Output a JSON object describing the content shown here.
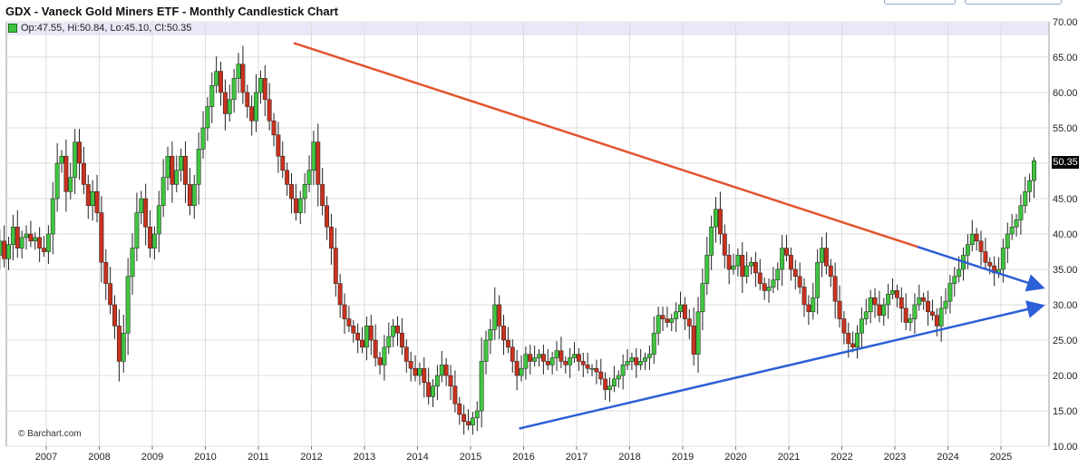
{
  "title": "GDX - Vaneck Gold Miners ETF - Monthly Candlestick Chart",
  "ohlc_readout": "Op:47.55, Hi:50.84, Lo:45.10, Cl:50.35",
  "credit": "© Barchart.com",
  "last_price_label": "50.35",
  "colors": {
    "up": "#3fc53f",
    "down": "#c8321e",
    "wick": "#222222",
    "resistance": "#e4542f",
    "support": "#2d5fd6",
    "header_band": "#e8e8f8",
    "grid": "#dcdcdc"
  },
  "chart_data": {
    "type": "candlestick",
    "title": "GDX - Vaneck Gold Miners ETF - Monthly Candlestick Chart",
    "interval": "monthly",
    "ylim": [
      10,
      70
    ],
    "y_ticks": [
      "70.00",
      "65.00",
      "60.00",
      "55.00",
      "50.00",
      "45.00",
      "40.00",
      "35.00",
      "30.00",
      "25.00",
      "20.00",
      "15.00",
      "10.00"
    ],
    "x_ticks": [
      "2007",
      "2008",
      "2009",
      "2010",
      "2011",
      "2012",
      "2013",
      "2014",
      "2015",
      "2016",
      "2017",
      "2018",
      "2019",
      "2020",
      "2021",
      "2022",
      "2023",
      "2024",
      "2025"
    ],
    "grid": true,
    "last": {
      "open": 47.55,
      "high": 50.84,
      "low": 45.1,
      "close": 50.35
    },
    "closes": [
      37.0,
      39.0,
      36.5,
      38.5,
      41.0,
      38.0,
      39.5,
      40.0,
      39.0,
      39.5,
      38.0,
      37.5,
      40.0,
      45.0,
      50.0,
      51.0,
      46.0,
      48.0,
      53.0,
      50.0,
      47.0,
      44.0,
      46.0,
      43.0,
      36.0,
      33.0,
      30.0,
      27.0,
      22.0,
      26.0,
      34.0,
      38.0,
      43.0,
      45.0,
      41.0,
      38.0,
      40.0,
      44.0,
      48.0,
      51.0,
      47.0,
      49.0,
      51.0,
      47.0,
      44.0,
      47.0,
      52.0,
      55.0,
      58.0,
      61.0,
      63.0,
      60.0,
      57.0,
      59.0,
      62.0,
      64.0,
      60.0,
      58.0,
      56.0,
      60.0,
      62.0,
      59.0,
      56.0,
      54.0,
      51.0,
      49.0,
      47.0,
      45.0,
      43.0,
      45.0,
      47.0,
      49.0,
      53.0,
      47.0,
      44.0,
      41.0,
      38.0,
      33.0,
      30.0,
      28.0,
      27.0,
      26.0,
      25.0,
      24.0,
      27.0,
      25.0,
      22.5,
      21.5,
      24.0,
      25.5,
      27.0,
      26.0,
      24.0,
      22.0,
      21.0,
      20.0,
      21.0,
      19.0,
      17.0,
      18.5,
      20.0,
      21.5,
      20.0,
      18.5,
      16.0,
      14.5,
      13.5,
      13.0,
      14.0,
      15.0,
      22.0,
      25.0,
      26.5,
      30.0,
      27.0,
      25.0,
      24.0,
      22.0,
      20.0,
      21.0,
      23.0,
      22.0,
      22.5,
      23.0,
      22.0,
      21.5,
      22.5,
      23.5,
      22.0,
      21.5,
      22.5,
      23.0,
      22.0,
      21.5,
      21.0,
      21.0,
      20.5,
      19.5,
      18.0,
      18.5,
      19.5,
      20.0,
      21.5,
      22.0,
      22.5,
      21.5,
      22.0,
      22.5,
      23.0,
      26.0,
      28.5,
      28.0,
      27.5,
      28.0,
      29.0,
      30.0,
      28.0,
      27.0,
      23.0,
      29.0,
      33.0,
      37.0,
      41.0,
      43.5,
      40.0,
      37.0,
      35.0,
      35.5,
      37.0,
      34.0,
      35.5,
      36.0,
      34.5,
      33.0,
      32.0,
      32.5,
      33.5,
      35.0,
      38.0,
      37.0,
      35.0,
      34.0,
      32.5,
      30.0,
      29.0,
      31.0,
      36.0,
      38.0,
      35.5,
      34.0,
      30.5,
      28.0,
      26.0,
      24.5,
      24.0,
      26.0,
      28.0,
      29.0,
      31.0,
      30.0,
      28.5,
      30.0,
      31.5,
      32.0,
      31.0,
      29.5,
      27.5,
      28.0,
      30.0,
      31.0,
      30.5,
      29.0,
      28.5,
      27.0,
      29.5,
      30.5,
      33.0,
      34.0,
      35.0,
      37.0,
      38.5,
      40.0,
      39.0,
      37.5,
      36.0,
      35.5,
      34.5,
      35.0,
      38.0,
      40.0,
      41.0,
      42.0,
      44.0,
      46.0,
      47.55,
      50.35
    ],
    "annotations": [
      {
        "type": "trendline",
        "name": "descending resistance",
        "from": [
          "2011-09",
          67.0
        ],
        "to": [
          "2025-10",
          32.5
        ]
      },
      {
        "type": "trendline",
        "name": "ascending support",
        "from": [
          "2015-12",
          12.5
        ],
        "to": [
          "2025-10",
          29.8
        ]
      }
    ]
  }
}
